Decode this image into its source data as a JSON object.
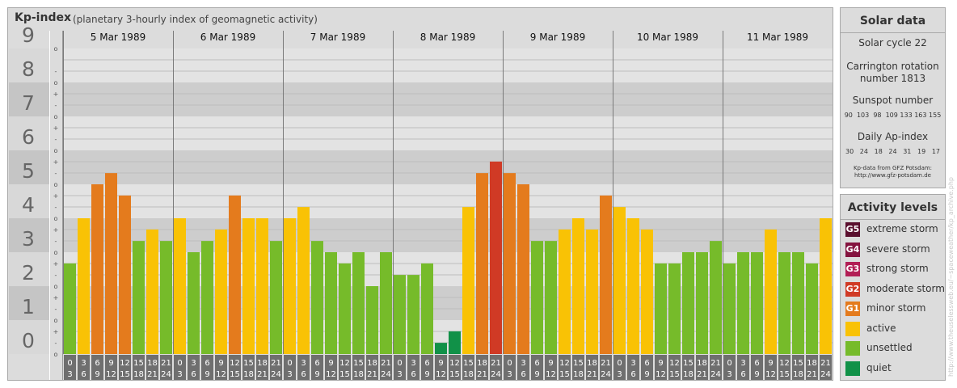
{
  "header": {
    "title": "Kp-index",
    "subtitle": "(planetary 3-hourly index of geomagnetic activity)"
  },
  "chart_data": {
    "type": "bar",
    "title": "Kp-index",
    "ylim": [
      0,
      9
    ],
    "y_ticks": [
      "0",
      "1",
      "2",
      "3",
      "4",
      "5",
      "6",
      "7",
      "8",
      "9"
    ],
    "minor_tick_marks": [
      "+",
      "o",
      "-"
    ],
    "days": [
      "5 Mar 1989",
      "6 Mar 1989",
      "7 Mar 1989",
      "8 Mar 1989",
      "9 Mar 1989",
      "10 Mar 1989",
      "11 Mar 1989"
    ],
    "hour_start_labels": [
      "0",
      "3",
      "6",
      "9",
      "12",
      "15",
      "18",
      "21"
    ],
    "hour_end_labels": [
      "3",
      "6",
      "9",
      "12",
      "15",
      "18",
      "21",
      "24"
    ],
    "values": [
      [
        2.67,
        4.0,
        5.0,
        5.33,
        4.67,
        3.33,
        3.67,
        3.33
      ],
      [
        4.0,
        3.0,
        3.33,
        3.67,
        4.67,
        4.0,
        4.0,
        3.33
      ],
      [
        4.0,
        4.33,
        3.33,
        3.0,
        2.67,
        3.0,
        2.0,
        3.0
      ],
      [
        2.33,
        2.33,
        2.67,
        0.33,
        0.67,
        4.33,
        5.33,
        5.67
      ],
      [
        5.33,
        5.0,
        3.33,
        3.33,
        3.67,
        4.0,
        3.67,
        4.67
      ],
      [
        4.33,
        4.0,
        3.67,
        2.67,
        2.67,
        3.0,
        3.0,
        3.33
      ],
      [
        2.67,
        3.0,
        3.0,
        3.67,
        3.0,
        3.0,
        2.67,
        4.0
      ]
    ],
    "colors": {
      "quiet": "#119148",
      "unsettled": "#76bb2a",
      "active": "#f9c205",
      "minor_storm": "#e47b1d",
      "moderate_storm": "#d03a25",
      "strong_storm": "#b21e55",
      "severe_storm": "#84133f",
      "extreme_storm": "#5a0f2e"
    }
  },
  "solar_data": {
    "title": "Solar data",
    "solar_cycle": "Solar cycle 22",
    "carrington_line1": "Carrington rotation",
    "carrington_line2": "number 1813",
    "sunspot_title": "Sunspot number",
    "sunspot_values": "90  103  98  109 133 163 155",
    "ap_title": "Daily Ap-index",
    "ap_values": "30   24   18   24   31   19   17",
    "source_line1": "Kp-data from GFZ Potsdam:",
    "source_line2": "http://www.gfz-potsdam.de"
  },
  "activity_levels": {
    "title": "Activity levels",
    "items": [
      {
        "code": "G5",
        "label": "extreme storm",
        "color": "#5a0f2e"
      },
      {
        "code": "G4",
        "label": "severe storm",
        "color": "#84133f"
      },
      {
        "code": "G3",
        "label": "strong storm",
        "color": "#b21e55"
      },
      {
        "code": "G2",
        "label": "moderate storm",
        "color": "#d03a25"
      },
      {
        "code": "G1",
        "label": "minor storm",
        "color": "#e47b1d"
      },
      {
        "code": "",
        "label": "active",
        "color": "#f9c205"
      },
      {
        "code": "",
        "label": "unsettled",
        "color": "#76bb2a"
      },
      {
        "code": "",
        "label": "quiet",
        "color": "#119148"
      }
    ]
  },
  "watermark": "http://www.theuselessweb.eu/~spaceweather/kp_archive.php"
}
